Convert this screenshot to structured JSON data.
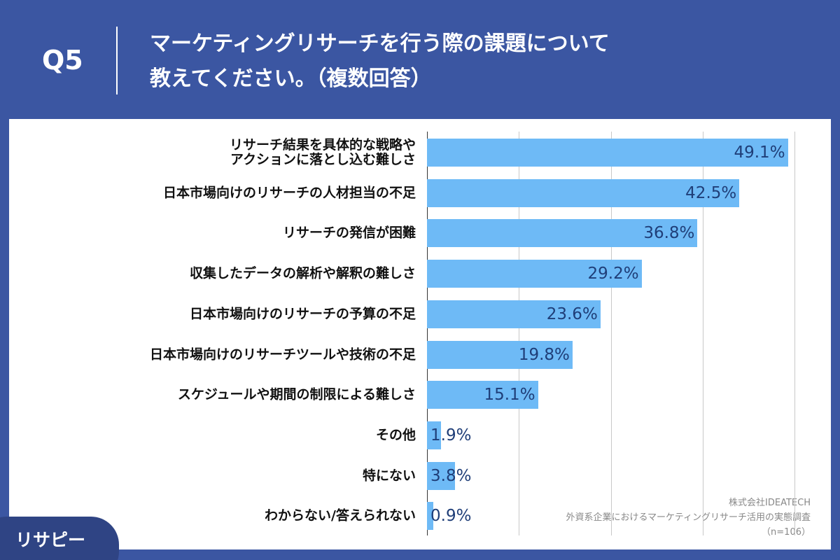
{
  "chart_data": {
    "type": "bar",
    "orientation": "horizontal",
    "question": "Q5",
    "title": "マーケティングリサーチを行う際の課題について\n教えてください。（複数回答）",
    "categories": [
      "リサーチ結果を具体的な戦略や\nアクションに落とし込む難しさ",
      "日本市場向けのリサーチの人材担当の不足",
      "リサーチの発信が困難",
      "収集したデータの解析や解釈の難しさ",
      "日本市場向けのリサーチの予算の不足",
      "日本市場向けのリサーチツールや技術の不足",
      "スケジュールや期間の制限による難しさ",
      "その他",
      "特にない",
      "わからない/答えられない"
    ],
    "values": [
      49.1,
      42.5,
      36.8,
      29.2,
      23.6,
      19.8,
      15.1,
      1.9,
      3.8,
      0.9
    ],
    "value_labels": [
      "49.1%",
      "42.5%",
      "36.8%",
      "29.2%",
      "23.6%",
      "19.8%",
      "15.1%",
      "1.9%",
      "3.8%",
      "0.9%"
    ],
    "color": "#6ebaf6",
    "xlim": [
      0,
      50
    ],
    "xticks": [
      0,
      12.5,
      25,
      37.5,
      50
    ],
    "grid": true,
    "source": [
      "株式会社IDEATECH",
      "外資系企業におけるマーケティングリサーチ活用の実態調査",
      "（n=106）"
    ],
    "logo": "リサピー"
  }
}
